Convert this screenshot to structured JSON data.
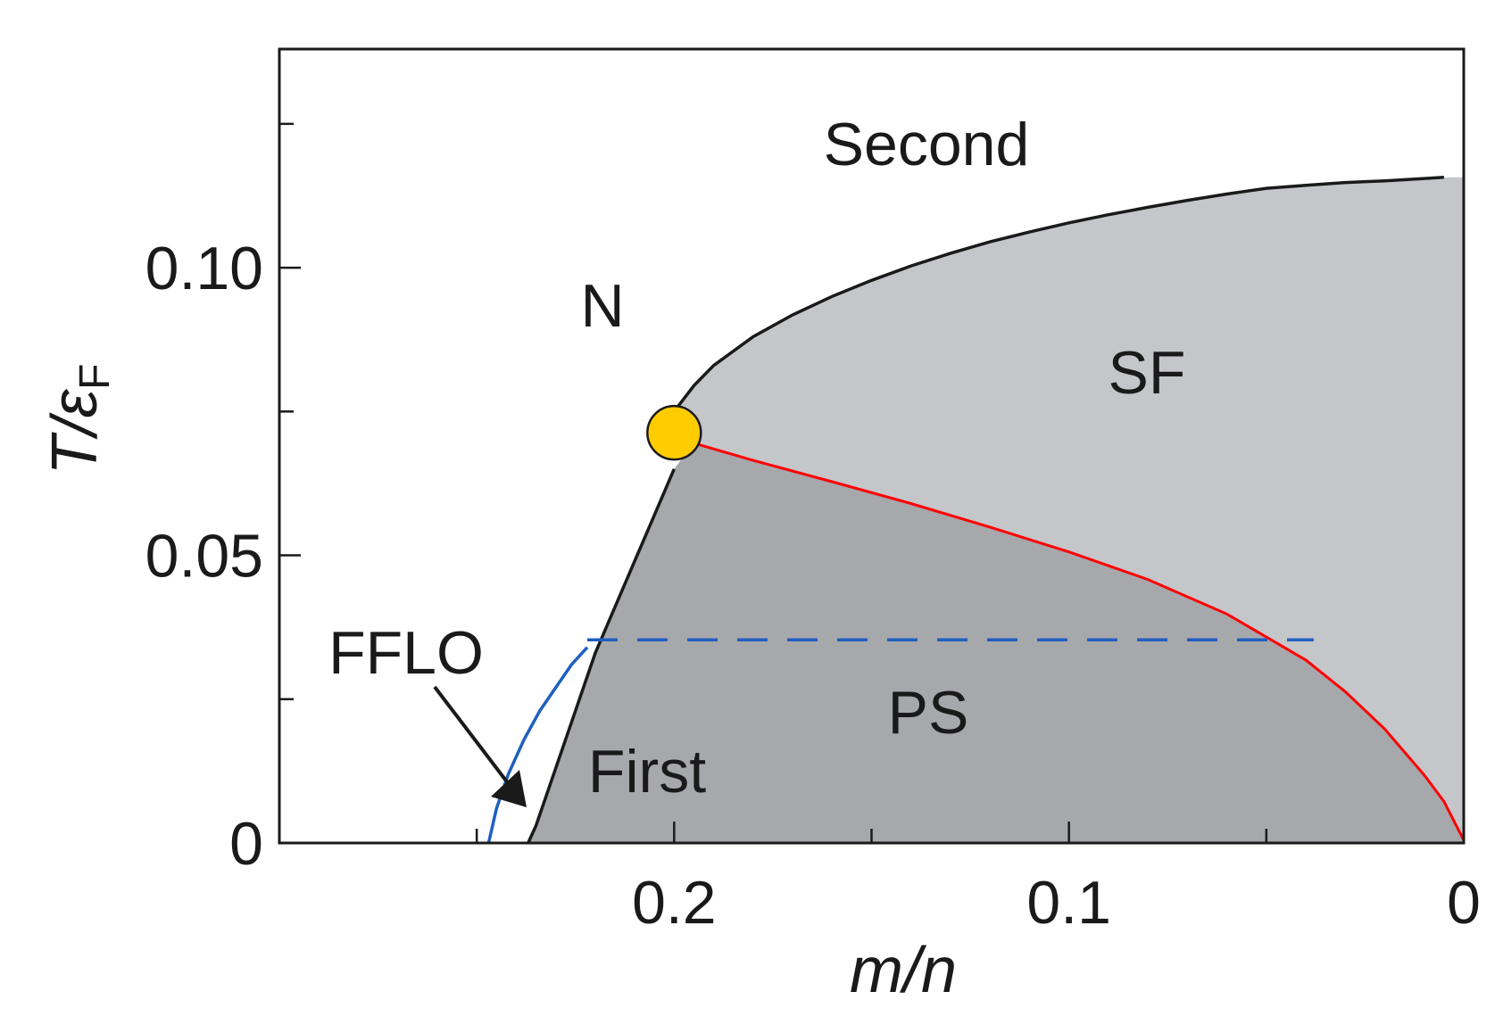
{
  "chart_data": {
    "type": "line",
    "title": "",
    "xlabel": "m/n",
    "ylabel": "T/ε",
    "ylabel_sub": "F",
    "xlim": [
      0.3,
      0.0
    ],
    "ylim": [
      0,
      0.13
    ],
    "x_ticks": [
      0.25,
      0.2,
      0.15,
      0.1,
      0.05,
      0.0
    ],
    "x_tick_labels": [
      {
        "value": 0.2,
        "label": "0.2"
      },
      {
        "value": 0.1,
        "label": "0.1"
      },
      {
        "value": 0.0,
        "label": "0"
      }
    ],
    "y_ticks": [
      0,
      0.025,
      0.05,
      0.075,
      0.1,
      0.125
    ],
    "y_tick_labels": [
      {
        "value": 0,
        "label": "0"
      },
      {
        "value": 0.05,
        "label": "0.05"
      },
      {
        "value": 0.1,
        "label": "0.10"
      }
    ],
    "series": [
      {
        "name": "",
        "role": "second-order boundary",
        "color": "#1a1a1a",
        "x": [
          0.2,
          0.195,
          0.19,
          0.18,
          0.17,
          0.16,
          0.15,
          0.14,
          0.13,
          0.12,
          0.11,
          0.1,
          0.09,
          0.08,
          0.07,
          0.06,
          0.05,
          0.04,
          0.03,
          0.02,
          0.01,
          0.005
        ],
        "y": [
          0.075,
          0.0795,
          0.083,
          0.088,
          0.0918,
          0.095,
          0.0978,
          0.1003,
          0.1025,
          0.1045,
          0.1062,
          0.1078,
          0.1092,
          0.1105,
          0.1117,
          0.1128,
          0.1138,
          0.1143,
          0.1148,
          0.1151,
          0.1155,
          0.1157
        ]
      },
      {
        "name": "",
        "role": "first-order boundary",
        "color": "#1a1a1a",
        "x": [
          0.2,
          0.205,
          0.21,
          0.215,
          0.22,
          0.225,
          0.228,
          0.232,
          0.235,
          0.237
        ],
        "y": [
          0.065,
          0.057,
          0.049,
          0.041,
          0.033,
          0.023,
          0.017,
          0.009,
          0.003,
          0.0
        ]
      },
      {
        "name": "",
        "role": "SF / PS boundary",
        "color": "#ff0000",
        "x": [
          0.195,
          0.18,
          0.16,
          0.14,
          0.12,
          0.1,
          0.08,
          0.06,
          0.04,
          0.03,
          0.02,
          0.01,
          0.005,
          0.0
        ],
        "y": [
          0.0695,
          0.0665,
          0.0628,
          0.059,
          0.0549,
          0.0506,
          0.0458,
          0.0398,
          0.0318,
          0.0263,
          0.0198,
          0.0118,
          0.0072,
          0.0005
        ]
      },
      {
        "name": "",
        "role": "FFLO line",
        "color": "#1f5fbf",
        "x": [
          0.247,
          0.245,
          0.242,
          0.238,
          0.234,
          0.23,
          0.226,
          0.222
        ],
        "y": [
          0.0,
          0.006,
          0.012,
          0.018,
          0.023,
          0.027,
          0.031,
          0.034
        ]
      },
      {
        "name": "",
        "role": "dashed blue",
        "color": "#1f5fbf",
        "x": [
          0.222,
          0.038
        ],
        "y": [
          0.0353,
          0.0353
        ]
      }
    ],
    "tricritical_point": {
      "x": 0.2,
      "y": 0.0713,
      "color": "#ffcc00"
    },
    "regions": [
      {
        "name": "SF",
        "color": "#c5c6c9"
      },
      {
        "name": "PS",
        "color": "#a7a8ac"
      }
    ],
    "annotations": [
      "Second",
      "N",
      "SF",
      "PS",
      "First",
      "FFLO"
    ]
  }
}
